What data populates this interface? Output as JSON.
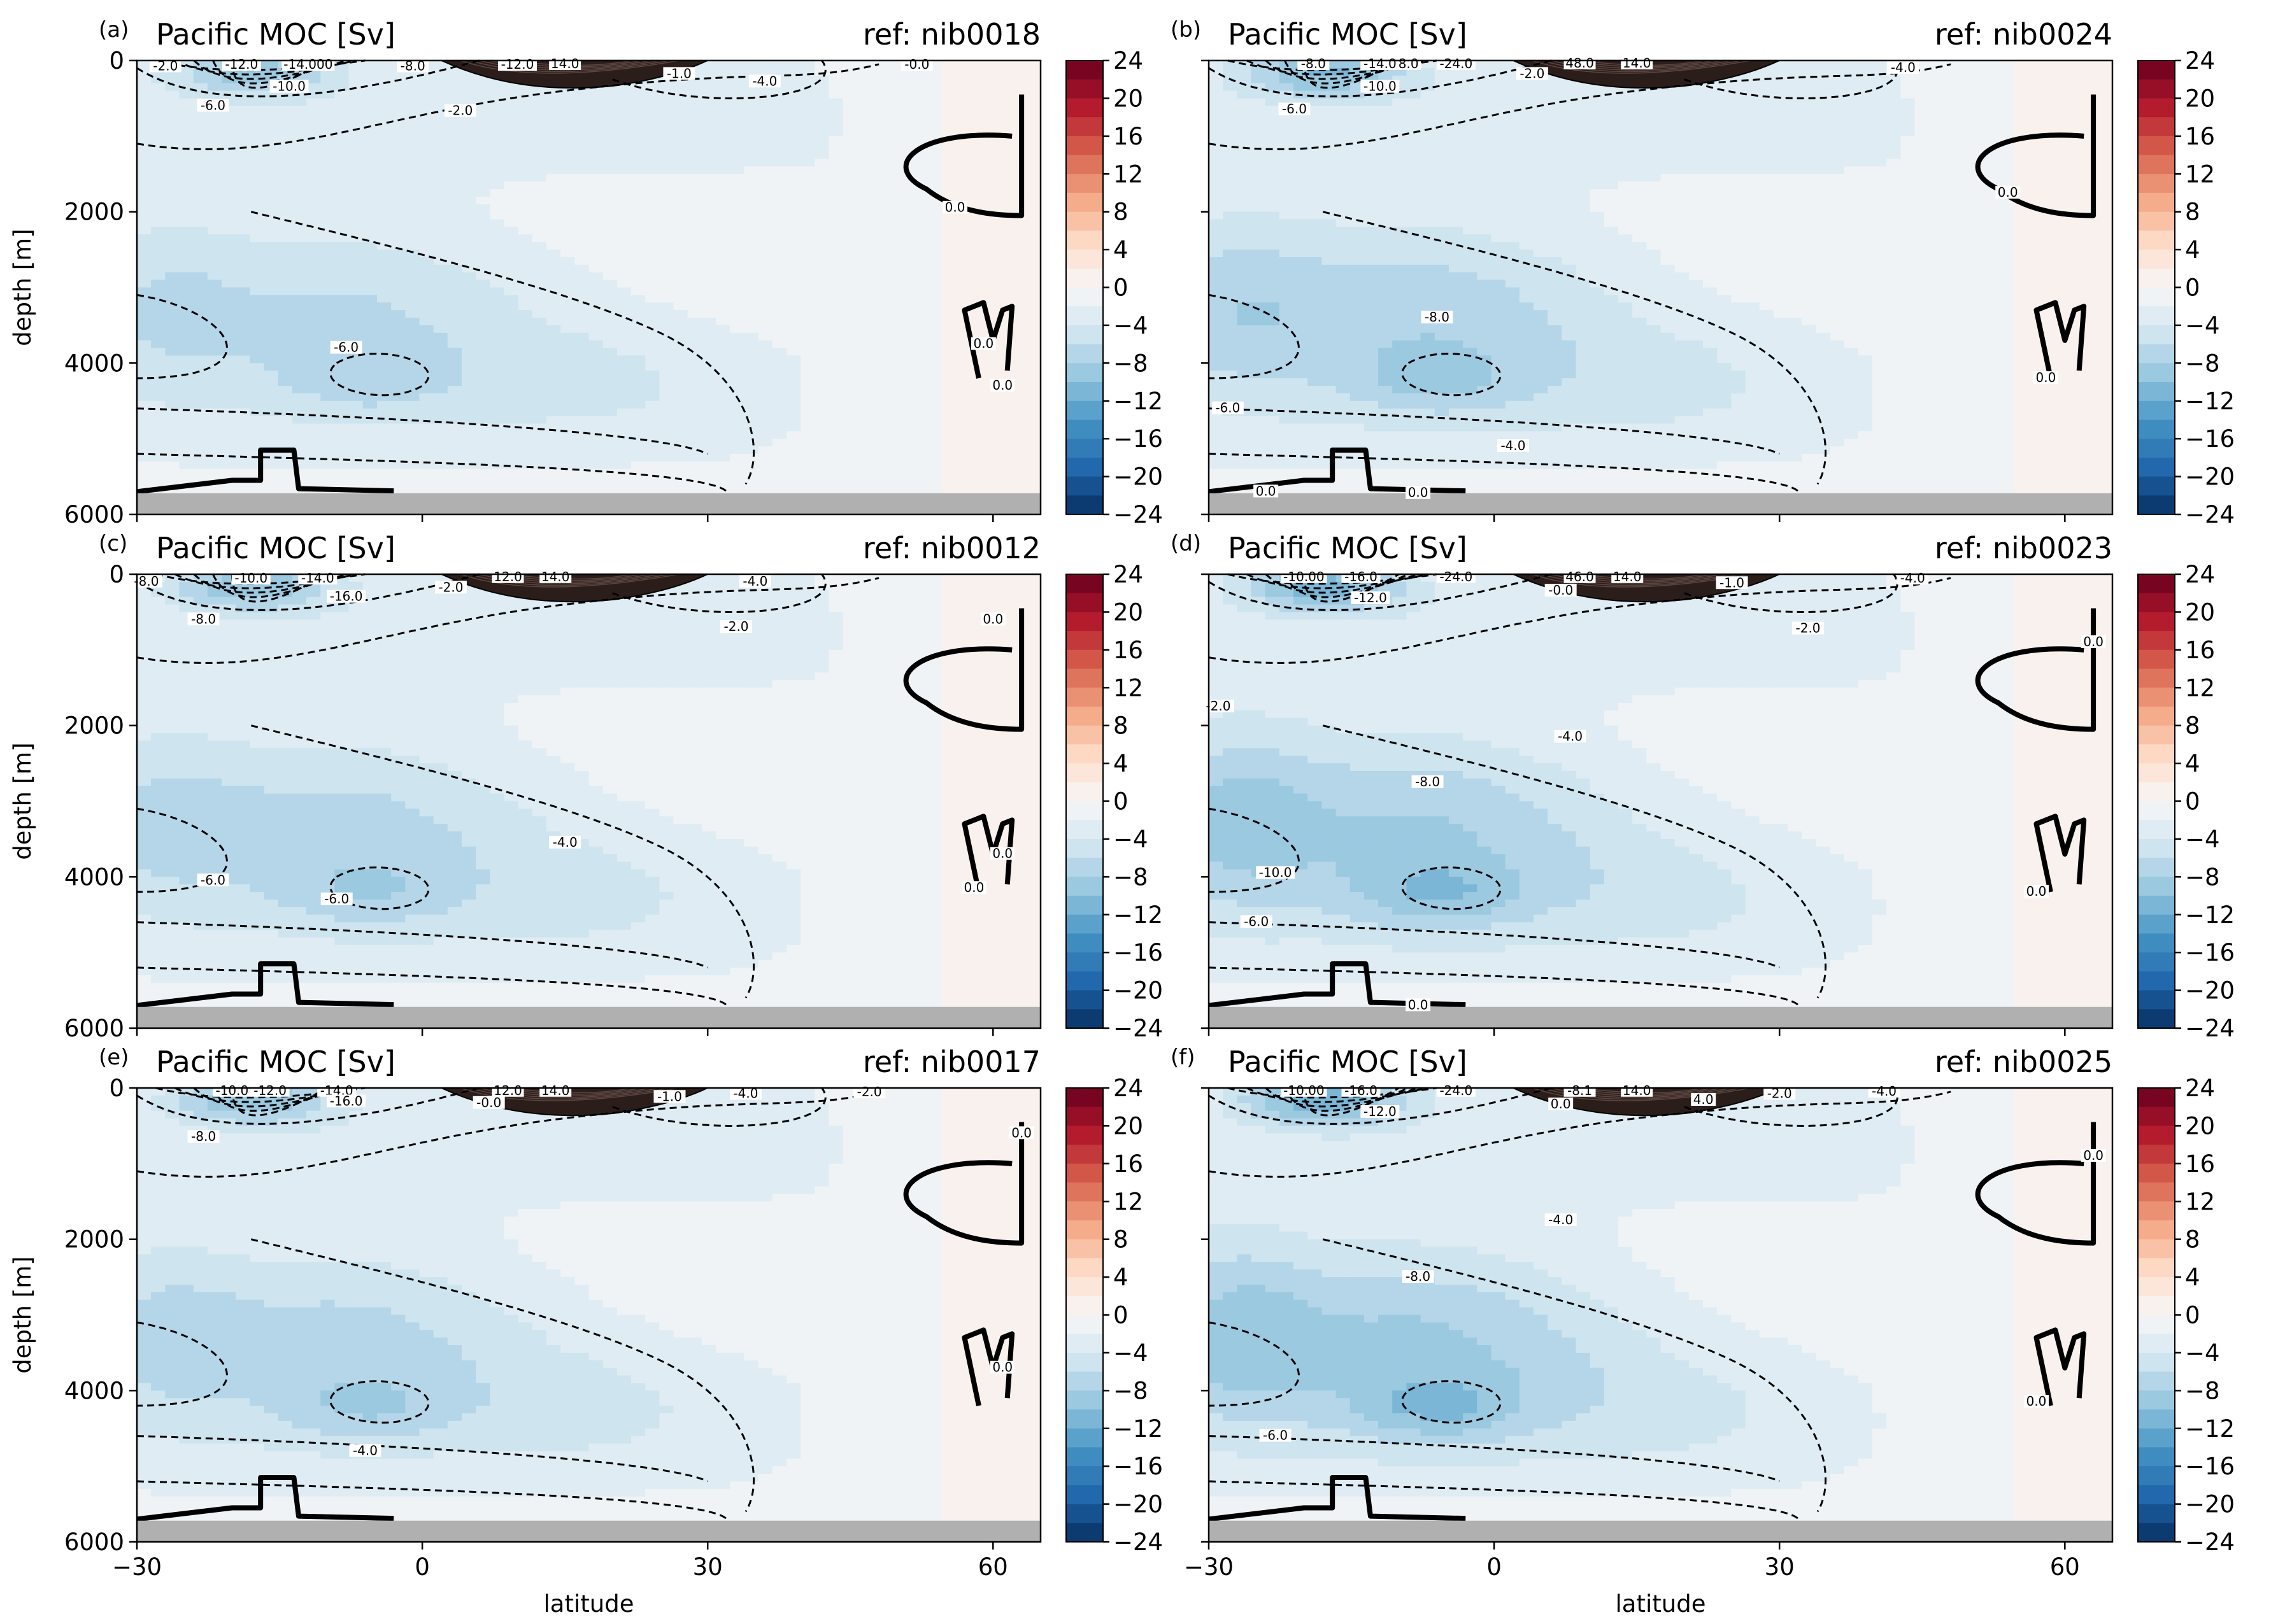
{
  "chart_data": {
    "type": "heatmap",
    "xlabel": "latitude",
    "ylabel": "depth [m]",
    "xlim": [
      -30,
      65
    ],
    "ylim": [
      6000,
      0
    ],
    "xticks": [
      "−30",
      "0",
      "30",
      "60"
    ],
    "xtick_values": [
      -30,
      0,
      30,
      60
    ],
    "yticks": [
      "0",
      "2000",
      "4000",
      "6000"
    ],
    "ytick_values": [
      0,
      2000,
      4000,
      6000
    ],
    "colorbar": {
      "cmap": "RdBu_r",
      "min": -24,
      "max": 24,
      "levels": 24,
      "ticks": [
        "24",
        "20",
        "16",
        "12",
        "8",
        "4",
        "0",
        "−4",
        "−8",
        "−12",
        "−16",
        "−20",
        "−24"
      ],
      "tick_values": [
        24,
        20,
        16,
        12,
        8,
        4,
        0,
        -4,
        -8,
        -12,
        -16,
        -20,
        -24
      ]
    },
    "panels": [
      {
        "letter": "(a)",
        "title": "Pacific MOC [Sv]",
        "ref": "ref: nib0018",
        "show_xlabels": false,
        "show_ylabels": true,
        "strength": 1.0,
        "deep": 0.9,
        "contour_labels": [
          {
            "text": "-2.0",
            "lat": -27,
            "depth": 80
          },
          {
            "text": "-12.0",
            "lat": -19,
            "depth": 60
          },
          {
            "text": "-14.000",
            "lat": -12,
            "depth": 60
          },
          {
            "text": "-8.0",
            "lat": -1,
            "depth": 80
          },
          {
            "text": "-12.0",
            "lat": 10,
            "depth": 60
          },
          {
            "text": "14.0",
            "lat": 15,
            "depth": 50
          },
          {
            "text": "-1.0",
            "lat": 27,
            "depth": 180
          },
          {
            "text": "-4.0",
            "lat": 36,
            "depth": 280
          },
          {
            "text": "-0.0",
            "lat": 52,
            "depth": 60
          },
          {
            "text": "-6.0",
            "lat": -22,
            "depth": 600
          },
          {
            "text": "-10.0",
            "lat": -14,
            "depth": 350
          },
          {
            "text": "-2.0",
            "lat": 4,
            "depth": 670
          },
          {
            "text": "0.0",
            "lat": 56,
            "depth": 1950
          },
          {
            "text": "-6.0",
            "lat": -8,
            "depth": 3800
          },
          {
            "text": "0.0",
            "lat": 59,
            "depth": 3750
          },
          {
            "text": "0.0",
            "lat": 61,
            "depth": 4300
          }
        ]
      },
      {
        "letter": "(b)",
        "title": "Pacific MOC [Sv]",
        "ref": "ref: nib0024",
        "show_xlabels": false,
        "show_ylabels": false,
        "strength": 1.2,
        "deep": 1.1,
        "contour_labels": [
          {
            "text": "-8.0",
            "lat": -19,
            "depth": 50
          },
          {
            "text": "-14.0",
            "lat": -12,
            "depth": 50
          },
          {
            "text": "8.0",
            "lat": -9,
            "depth": 50
          },
          {
            "text": "-24.0",
            "lat": -4,
            "depth": 50
          },
          {
            "text": "48.0",
            "lat": 9,
            "depth": 40
          },
          {
            "text": "14.0",
            "lat": 15,
            "depth": 40
          },
          {
            "text": "-2.0",
            "lat": 4,
            "depth": 180
          },
          {
            "text": "-4.0",
            "lat": 43,
            "depth": 100
          },
          {
            "text": "-6.0",
            "lat": -21,
            "depth": 650
          },
          {
            "text": "-10.0",
            "lat": -12,
            "depth": 350
          },
          {
            "text": "0.0",
            "lat": 54,
            "depth": 1750
          },
          {
            "text": "-8.0",
            "lat": -6,
            "depth": 3400
          },
          {
            "text": "-6.0",
            "lat": -28,
            "depth": 4600
          },
          {
            "text": "-4.0",
            "lat": 2,
            "depth": 5100
          },
          {
            "text": "0.0",
            "lat": 58,
            "depth": 4200
          },
          {
            "text": "0.0",
            "lat": -24,
            "depth": 5700
          },
          {
            "text": "0.0",
            "lat": -8,
            "depth": 5720
          }
        ]
      },
      {
        "letter": "(c)",
        "title": "Pacific MOC [Sv]",
        "ref": "ref: nib0012",
        "show_xlabels": false,
        "show_ylabels": true,
        "strength": 1.1,
        "deep": 0.95,
        "contour_labels": [
          {
            "text": "-8.0",
            "lat": -29,
            "depth": 100
          },
          {
            "text": "-10.0",
            "lat": -18,
            "depth": 60
          },
          {
            "text": "-14.0",
            "lat": -11,
            "depth": 60
          },
          {
            "text": "-16.0",
            "lat": -8,
            "depth": 300
          },
          {
            "text": "-2.0",
            "lat": 3,
            "depth": 180
          },
          {
            "text": "12.0",
            "lat": 9,
            "depth": 40
          },
          {
            "text": "14.0",
            "lat": 14,
            "depth": 40
          },
          {
            "text": "-4.0",
            "lat": 35,
            "depth": 100
          },
          {
            "text": "-8.0",
            "lat": -23,
            "depth": 600
          },
          {
            "text": "-2.0",
            "lat": 33,
            "depth": 700
          },
          {
            "text": "0.0",
            "lat": 60,
            "depth": 600
          },
          {
            "text": "-4.0",
            "lat": 15,
            "depth": 3550
          },
          {
            "text": "-6.0",
            "lat": -22,
            "depth": 4050
          },
          {
            "text": "-6.0",
            "lat": -9,
            "depth": 4300
          },
          {
            "text": "0.0",
            "lat": 58,
            "depth": 4150
          },
          {
            "text": "0.0",
            "lat": 61,
            "depth": 3700
          }
        ]
      },
      {
        "letter": "(d)",
        "title": "Pacific MOC [Sv]",
        "ref": "ref: nib0023",
        "show_xlabels": false,
        "show_ylabels": false,
        "strength": 1.3,
        "deep": 1.45,
        "contour_labels": [
          {
            "text": "-10.00",
            "lat": -20,
            "depth": 40
          },
          {
            "text": "-16.0",
            "lat": -14,
            "depth": 40
          },
          {
            "text": "-24.0",
            "lat": -4,
            "depth": 40
          },
          {
            "text": "46.0",
            "lat": 9,
            "depth": 40
          },
          {
            "text": "14.0",
            "lat": 14,
            "depth": 40
          },
          {
            "text": "-12.0",
            "lat": -13,
            "depth": 320
          },
          {
            "text": "-0.0",
            "lat": 7,
            "depth": 220
          },
          {
            "text": "-1.0",
            "lat": 25,
            "depth": 120
          },
          {
            "text": "-4.0",
            "lat": 44,
            "depth": 60
          },
          {
            "text": "-2.0",
            "lat": 33,
            "depth": 720
          },
          {
            "text": "0.0",
            "lat": 63,
            "depth": 900
          },
          {
            "text": "-2.0",
            "lat": -29,
            "depth": 1750
          },
          {
            "text": "-4.0",
            "lat": 8,
            "depth": 2150
          },
          {
            "text": "-8.0",
            "lat": -7,
            "depth": 2750
          },
          {
            "text": "-10.0",
            "lat": -23,
            "depth": 3950
          },
          {
            "text": "-6.0",
            "lat": -25,
            "depth": 4600
          },
          {
            "text": "0.0",
            "lat": 57,
            "depth": 4200
          },
          {
            "text": "0.0",
            "lat": -8,
            "depth": 5700
          }
        ]
      },
      {
        "letter": "(e)",
        "title": "Pacific MOC [Sv]",
        "ref": "ref: nib0017",
        "show_xlabels": true,
        "show_ylabels": true,
        "strength": 1.1,
        "deep": 1.0,
        "contour_labels": [
          {
            "text": "-10.0",
            "lat": -20,
            "depth": 40
          },
          {
            "text": "-12.0",
            "lat": -16,
            "depth": 40
          },
          {
            "text": "-14.0",
            "lat": -9,
            "depth": 40
          },
          {
            "text": "-16.0",
            "lat": -8,
            "depth": 180
          },
          {
            "text": "12.0",
            "lat": 9,
            "depth": 40
          },
          {
            "text": "14.0",
            "lat": 14,
            "depth": 40
          },
          {
            "text": "-0.0",
            "lat": 7,
            "depth": 200
          },
          {
            "text": "-1.0",
            "lat": 26,
            "depth": 120
          },
          {
            "text": "-4.0",
            "lat": 34,
            "depth": 80
          },
          {
            "text": "-2.0",
            "lat": 47,
            "depth": 60
          },
          {
            "text": "-8.0",
            "lat": -23,
            "depth": 650
          },
          {
            "text": "0.0",
            "lat": 63,
            "depth": 600
          },
          {
            "text": "0.0",
            "lat": 61,
            "depth": 3700
          },
          {
            "text": "-4.0",
            "lat": -6,
            "depth": 4800
          }
        ]
      },
      {
        "letter": "(f)",
        "title": "Pacific MOC [Sv]",
        "ref": "ref: nib0025",
        "show_xlabels": true,
        "show_ylabels": false,
        "strength": 1.35,
        "deep": 1.5,
        "contour_labels": [
          {
            "text": "-10.00",
            "lat": -20,
            "depth": 40
          },
          {
            "text": "-16.0",
            "lat": -14,
            "depth": 40
          },
          {
            "text": "-24.0",
            "lat": -4,
            "depth": 40
          },
          {
            "text": "-8.1",
            "lat": 9,
            "depth": 40
          },
          {
            "text": "14.0",
            "lat": 15,
            "depth": 40
          },
          {
            "text": "-12.0",
            "lat": -12,
            "depth": 320
          },
          {
            "text": "0.0",
            "lat": 7,
            "depth": 220
          },
          {
            "text": "4.0",
            "lat": 22,
            "depth": 160
          },
          {
            "text": "-2.0",
            "lat": 30,
            "depth": 80
          },
          {
            "text": "-4.0",
            "lat": 41,
            "depth": 50
          },
          {
            "text": "0.0",
            "lat": 63,
            "depth": 900
          },
          {
            "text": "-4.0",
            "lat": 7,
            "depth": 1750
          },
          {
            "text": "-8.0",
            "lat": -8,
            "depth": 2500
          },
          {
            "text": "-6.0",
            "lat": -23,
            "depth": 4600
          },
          {
            "text": "0.0",
            "lat": 57,
            "depth": 4150
          }
        ]
      }
    ]
  }
}
